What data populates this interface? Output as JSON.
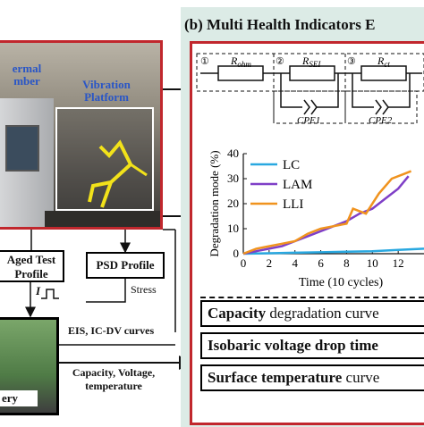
{
  "photo_panel": {
    "chamber_label": "ermal\nmber",
    "vibration_label": "Vibration\nPlatform"
  },
  "aged_test_box": {
    "line1": "Aged Test",
    "line2": "Profile"
  },
  "psd_box": {
    "label": "PSD Profile"
  },
  "arrow_labels": {
    "current": "I",
    "stress": "Stress",
    "eis": "EIS, IC-DV curves",
    "measurements": "Capacity, Voltage,\ntemperature"
  },
  "battery_label": "ery",
  "panel_b": {
    "title": "(b) Multi Health Indicators E",
    "circuit": {
      "markers": [
        "①",
        "②",
        "③"
      ],
      "r_ohm_base": "R",
      "r_ohm_sub": "ohm",
      "r_sei_base": "R",
      "r_sei_sub": "SEI",
      "r_ct_base": "R",
      "r_ct_sub": "ct",
      "cpe1": "CPE1",
      "cpe2": "CPE2"
    },
    "indicators": [
      {
        "bold": "Capacity",
        "rest": " degradation curve"
      },
      {
        "bold": "Isobaric voltage drop time",
        "rest": ""
      },
      {
        "bold": "Surface temperature",
        "rest": " curve"
      }
    ]
  },
  "chart_data": {
    "type": "line",
    "xlabel": "Time (10 cycles)",
    "ylabel": "Degradation mode (%)",
    "xlim": [
      0,
      14
    ],
    "ylim": [
      0,
      40
    ],
    "x_ticks": [
      0,
      2,
      4,
      6,
      8,
      10,
      12
    ],
    "y_ticks": [
      0,
      10,
      20,
      30,
      40
    ],
    "legend_position": "top-left",
    "series": [
      {
        "name": "LC",
        "color": "#29a8e0",
        "x": [
          0,
          2,
          4,
          6,
          8,
          10,
          12,
          14
        ],
        "values": [
          0,
          0.2,
          0.4,
          0.6,
          0.8,
          1.0,
          1.5,
          2
        ]
      },
      {
        "name": "LAM",
        "color": "#7f3fc7",
        "x": [
          0,
          1,
          2,
          3,
          4,
          5,
          6,
          7,
          8,
          9,
          10,
          11,
          12,
          12.8
        ],
        "values": [
          0,
          1,
          2,
          3,
          5,
          7,
          9,
          11,
          13,
          16,
          18,
          22,
          26,
          31
        ]
      },
      {
        "name": "LLI",
        "color": "#f0931e",
        "x": [
          0,
          1,
          2,
          3,
          4,
          5,
          6,
          7,
          8,
          8.5,
          9.5,
          10.5,
          11.5,
          12.5,
          13
        ],
        "values": [
          0,
          2,
          3,
          4,
          5,
          8,
          10,
          11,
          12,
          18,
          16,
          24,
          30,
          32,
          33
        ]
      }
    ]
  },
  "colors": {
    "frame_red": "#c1272d",
    "panel_green": "#dcebe6",
    "photo_label_blue": "#2a56c6"
  }
}
